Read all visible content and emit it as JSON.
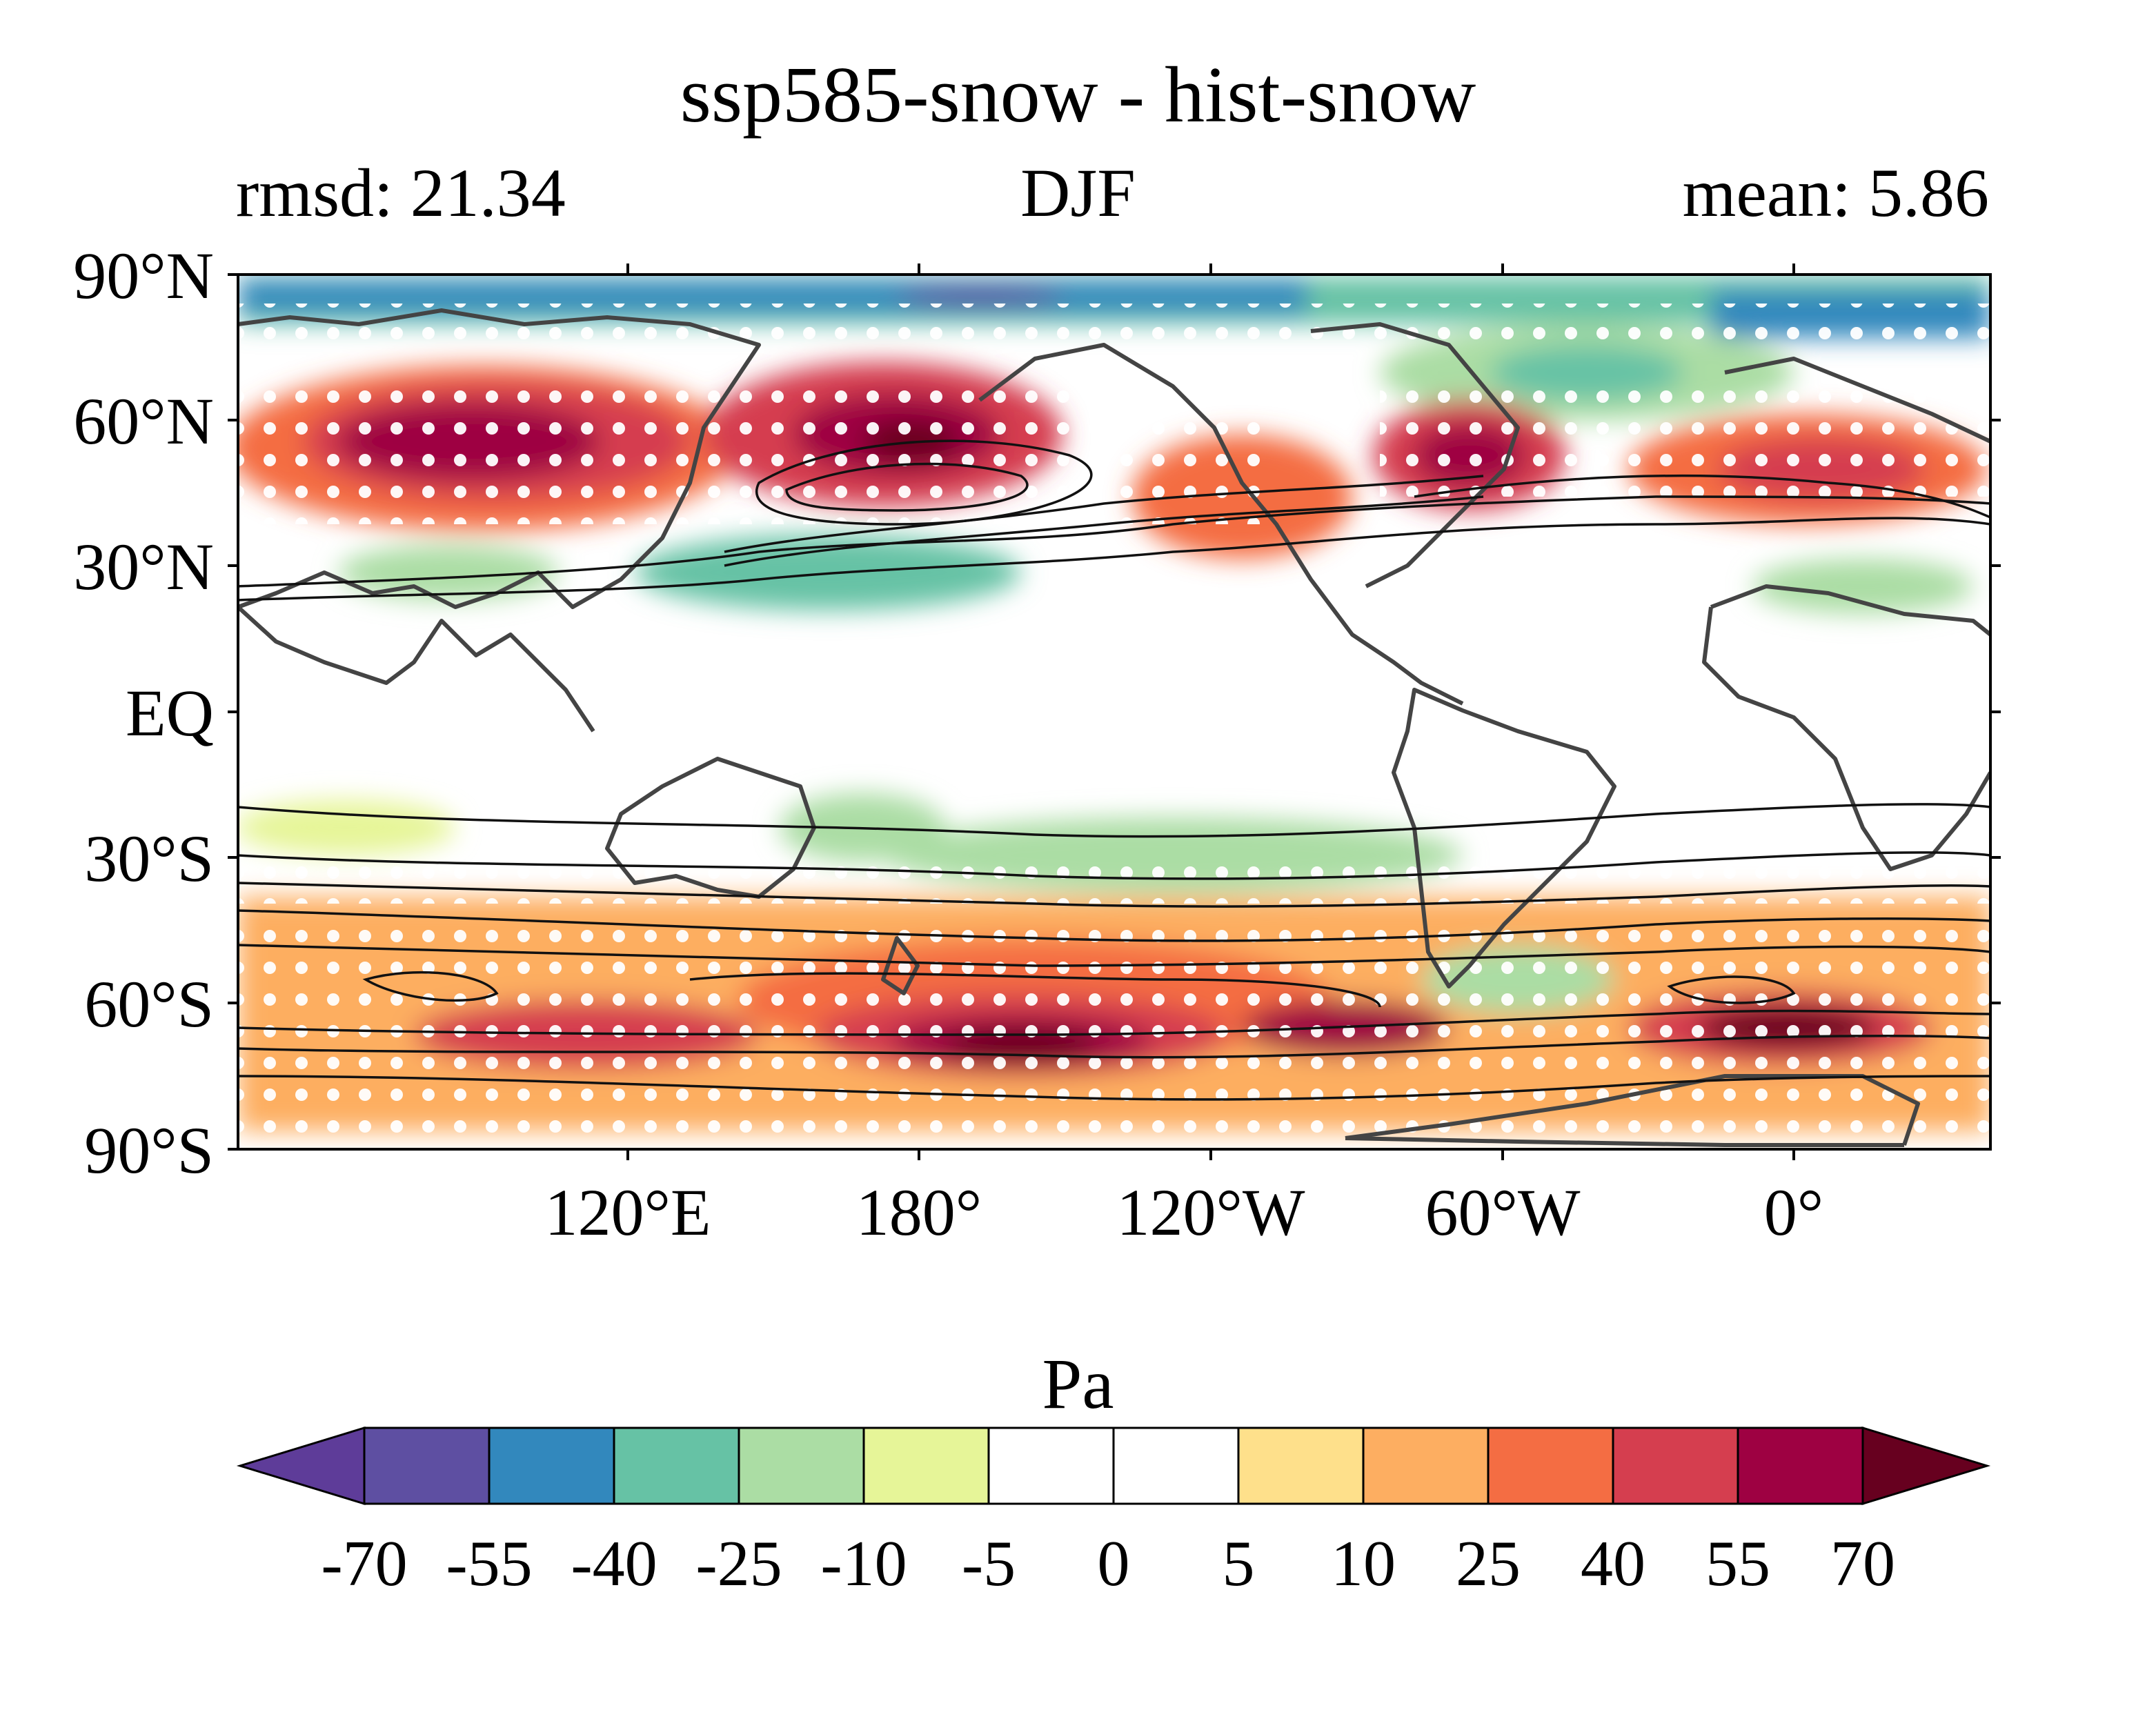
{
  "title": "ssp585-snow - hist-snow",
  "subtitle_left": "rmsd: 21.34",
  "subtitle_center": "DJF",
  "subtitle_right": "mean: 5.86",
  "lat_labels": [
    "90°N",
    "60°N",
    "30°N",
    "EQ",
    "30°S",
    "60°S",
    "90°S"
  ],
  "lon_labels": [
    "120°E",
    "180°",
    "120°W",
    "60°W",
    "0°"
  ],
  "colorbar": {
    "unit": "Pa",
    "tick_labels": [
      "-70",
      "-55",
      "-40",
      "-25",
      "-10",
      "-5",
      "0",
      "5",
      "10",
      "25",
      "40",
      "55",
      "70"
    ],
    "colors": [
      "#5e3c99",
      "#5e4fa2",
      "#3288bd",
      "#66c2a5",
      "#abdda4",
      "#e6f598",
      "#ffffff",
      "#ffffff",
      "#fee08b",
      "#fdae61",
      "#f46d43",
      "#d53e4f",
      "#9e0142",
      "#67001f"
    ]
  }
}
